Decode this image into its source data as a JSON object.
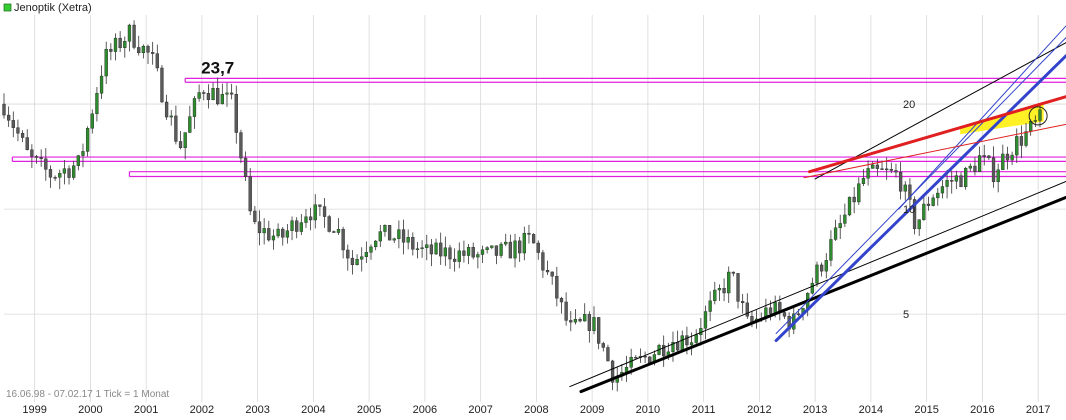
{
  "window": {
    "title": "Jenoptik (Xetra)"
  },
  "footer": {
    "range_info": "16.06.98 - 07.02.17    1 Tick = 1 Monat"
  },
  "colors": {
    "legend_swatch": "#33cc33",
    "candle_up": "#2e8b2e",
    "candle_down": "#5a5a5a",
    "horizontal_lines": "#e020e0",
    "trend_black": "#000000",
    "trend_blue": "#3344cc",
    "trend_red": "#e02020",
    "fill_yellow": "#ffee00",
    "grid": "#d8d8d8"
  },
  "chart_data": {
    "type": "candlestick",
    "title": "Jenoptik (Xetra)",
    "interval": "1 Tick = 1 Monat",
    "date_range": [
      "16.06.98",
      "07.02.17"
    ],
    "y_scale": "log",
    "ylim": [
      2.8,
      36
    ],
    "xlim": [
      1998.45,
      2017.5
    ],
    "x_ticks": [
      "1999",
      "2000",
      "2001",
      "2002",
      "2003",
      "2004",
      "2005",
      "2006",
      "2007",
      "2008",
      "2009",
      "2010",
      "2011",
      "2012",
      "2013",
      "2014",
      "2015",
      "2016",
      "2017"
    ],
    "y_ticks": [
      5,
      10,
      20
    ],
    "annotations": [
      {
        "text": "23,7",
        "x": 2001.7,
        "y": 23.7
      }
    ],
    "grid": true,
    "anchor_points": [
      {
        "x": 1998.45,
        "y": 20.0
      },
      {
        "x": 1998.9,
        "y": 14.0
      },
      {
        "x": 1999.3,
        "y": 12.5
      },
      {
        "x": 1999.8,
        "y": 13.5
      },
      {
        "x": 2000.25,
        "y": 27.0
      },
      {
        "x": 2000.7,
        "y": 32.0
      },
      {
        "x": 2001.1,
        "y": 27.0
      },
      {
        "x": 2001.6,
        "y": 15.0
      },
      {
        "x": 2002.0,
        "y": 22.5
      },
      {
        "x": 2002.55,
        "y": 20.0
      },
      {
        "x": 2002.9,
        "y": 9.0
      },
      {
        "x": 2003.4,
        "y": 8.2
      },
      {
        "x": 2003.9,
        "y": 10.0
      },
      {
        "x": 2004.4,
        "y": 9.0
      },
      {
        "x": 2004.7,
        "y": 7.0
      },
      {
        "x": 2005.1,
        "y": 8.5
      },
      {
        "x": 2005.5,
        "y": 8.3
      },
      {
        "x": 2006.0,
        "y": 7.5
      },
      {
        "x": 2006.5,
        "y": 7.5
      },
      {
        "x": 2007.0,
        "y": 7.3
      },
      {
        "x": 2007.5,
        "y": 7.6
      },
      {
        "x": 2007.9,
        "y": 8.2
      },
      {
        "x": 2008.3,
        "y": 6.0
      },
      {
        "x": 2008.6,
        "y": 4.5
      },
      {
        "x": 2009.0,
        "y": 4.8
      },
      {
        "x": 2009.4,
        "y": 3.3
      },
      {
        "x": 2009.9,
        "y": 3.7
      },
      {
        "x": 2010.4,
        "y": 4.2
      },
      {
        "x": 2010.8,
        "y": 4.3
      },
      {
        "x": 2011.2,
        "y": 5.5
      },
      {
        "x": 2011.5,
        "y": 6.5
      },
      {
        "x": 2011.8,
        "y": 4.6
      },
      {
        "x": 2012.2,
        "y": 5.2
      },
      {
        "x": 2012.6,
        "y": 4.7
      },
      {
        "x": 2012.9,
        "y": 6.0
      },
      {
        "x": 2013.3,
        "y": 8.0
      },
      {
        "x": 2013.6,
        "y": 10.0
      },
      {
        "x": 2013.9,
        "y": 12.5
      },
      {
        "x": 2014.2,
        "y": 12.7
      },
      {
        "x": 2014.5,
        "y": 12.5
      },
      {
        "x": 2014.8,
        "y": 9.0
      },
      {
        "x": 2015.1,
        "y": 11.0
      },
      {
        "x": 2015.4,
        "y": 12.0
      },
      {
        "x": 2015.7,
        "y": 12.5
      },
      {
        "x": 2015.95,
        "y": 14.0
      },
      {
        "x": 2016.2,
        "y": 12.8
      },
      {
        "x": 2016.5,
        "y": 15.0
      },
      {
        "x": 2016.8,
        "y": 16.5
      },
      {
        "x": 2017.1,
        "y": 18.5
      }
    ],
    "horizontal_lines": [
      {
        "y": 23.7,
        "x_start": 2001.7
      },
      {
        "y": 23.1,
        "x_start": 2001.7
      },
      {
        "y": 14.1,
        "x_start": 1998.6
      },
      {
        "y": 13.7,
        "x_start": 1998.6
      },
      {
        "y": 12.8,
        "x_start": 2000.7
      },
      {
        "y": 12.4,
        "x_start": 2000.7
      }
    ],
    "trend_lines": [
      {
        "color": "black",
        "width": 3,
        "points": [
          [
            2008.8,
            3.0
          ],
          [
            2017.5,
            10.8
          ]
        ]
      },
      {
        "color": "black",
        "width": 1,
        "points": [
          [
            2008.6,
            3.1
          ],
          [
            2017.5,
            12.0
          ]
        ]
      },
      {
        "color": "black",
        "width": 1,
        "points": [
          [
            2013.0,
            12.2
          ],
          [
            2017.5,
            30.0
          ]
        ]
      },
      {
        "color": "blue",
        "width": 3,
        "points": [
          [
            2012.3,
            4.2
          ],
          [
            2017.5,
            27.5
          ]
        ]
      },
      {
        "color": "blue",
        "width": 1,
        "points": [
          [
            2012.3,
            4.4
          ],
          [
            2017.5,
            31.0
          ]
        ]
      },
      {
        "color": "blue",
        "width": 1,
        "points": [
          [
            2014.5,
            10.0
          ],
          [
            2017.5,
            33.5
          ]
        ]
      },
      {
        "color": "red",
        "width": 3,
        "points": [
          [
            2012.9,
            12.8
          ],
          [
            2017.5,
            21.0
          ]
        ]
      },
      {
        "color": "red",
        "width": 1,
        "points": [
          [
            2012.8,
            12.3
          ],
          [
            2017.5,
            17.5
          ]
        ]
      }
    ]
  }
}
